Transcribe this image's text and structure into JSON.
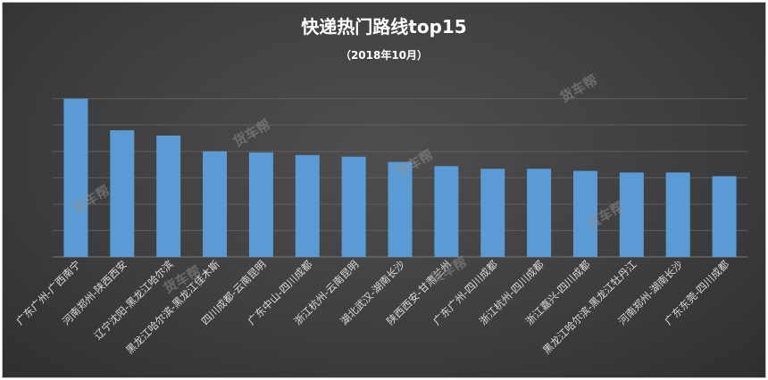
{
  "chart_data": {
    "type": "bar",
    "title": "快递热门路线top15",
    "subtitle": "（2018年10月）",
    "xlabel": "",
    "ylabel": "",
    "ylim": [
      0,
      3.5
    ],
    "grid": true,
    "legend": "none",
    "colors": {
      "bar": "#5b9bd5",
      "grid": "#5f5f5f",
      "background": "#404040"
    },
    "categories": [
      "广东广州-广西南宁",
      "河南郑州-陕西西安",
      "辽宁沈阳-黑龙江哈尔滨",
      "黑龙江哈尔滨-黑龙江佳木斯",
      "四川成都-云南昆明",
      "广东中山-四川成都",
      "浙江杭州-云南昆明",
      "湖北武汉-湖南长沙",
      "陕西西安-甘肃兰州",
      "广东广州-四川成都",
      "浙江杭州-四川成都",
      "浙江嘉兴-四川成都",
      "黑龙江哈尔滨-黑龙江牡丹江",
      "河南郑州-湖南长沙",
      "广东东莞-四川成都"
    ],
    "values": [
      3.0,
      2.4,
      2.3,
      2.0,
      1.98,
      1.93,
      1.9,
      1.8,
      1.72,
      1.67,
      1.67,
      1.63,
      1.6,
      1.6,
      1.53
    ]
  },
  "watermark": "货车帮"
}
